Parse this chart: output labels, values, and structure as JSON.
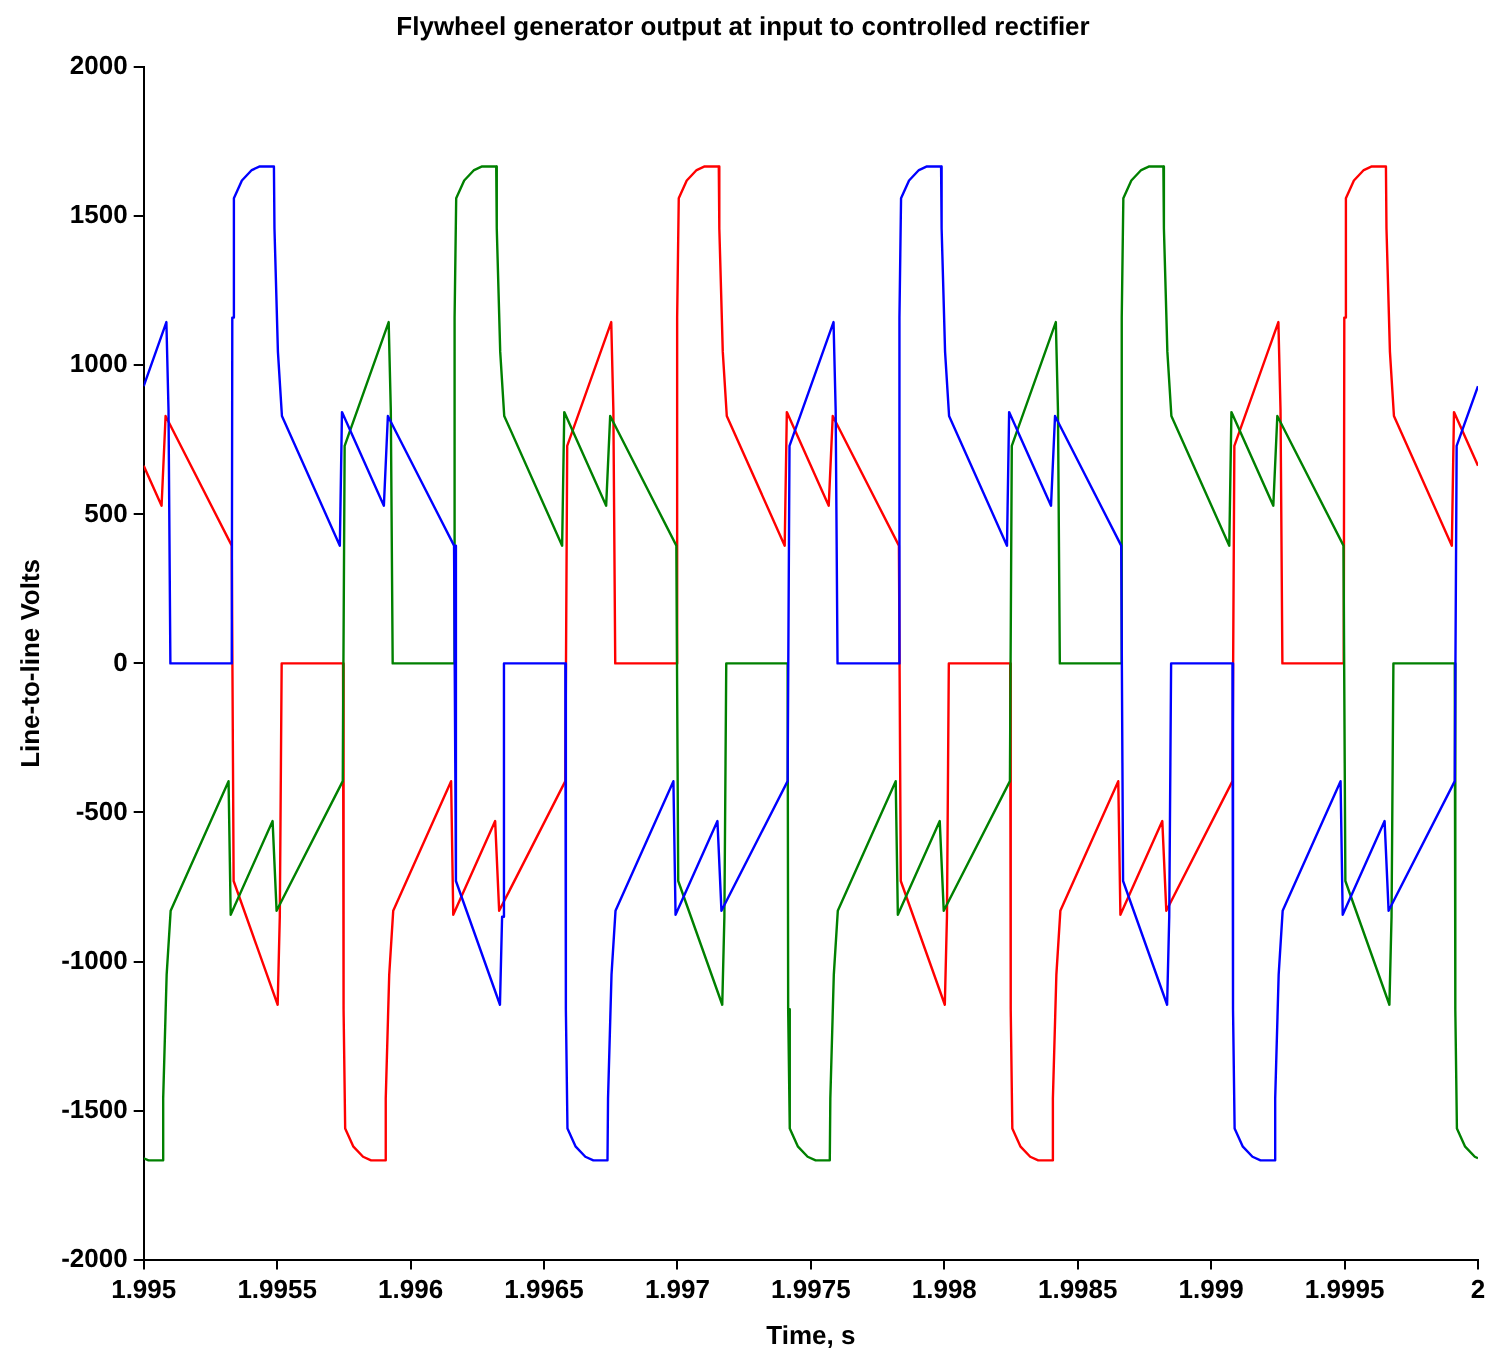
{
  "chart_data": {
    "type": "line",
    "title": "Flywheel generator output at input to controlled rectifier",
    "xlabel": "Time, s",
    "ylabel": "Line-to-line Volts",
    "xlim": [
      1.995,
      2
    ],
    "xticks": [
      1.995,
      1.9955,
      1.996,
      1.9965,
      1.997,
      1.9975,
      1.998,
      1.9985,
      1.999,
      1.9995,
      2
    ],
    "ylim": [
      -2000,
      2000
    ],
    "yticks": [
      -2000,
      -1500,
      -1000,
      -500,
      0,
      500,
      1000,
      1500,
      2000
    ],
    "grid": false,
    "legend": false,
    "series": [
      {
        "color": "#0000ff",
        "x": [
          1.995,
          1.995085,
          1.995093,
          1.9951,
          1.99533,
          1.995332,
          1.995338,
          1.995368,
          1.995405,
          1.995435,
          1.995488,
          1.99549,
          1.995503,
          1.995518,
          1.995735,
          1.995743,
          1.9959,
          1.995915,
          1.996163,
          1.99617,
          1.996335,
          1.996343,
          1.99635,
          1.99658,
          1.996582,
          1.996588,
          1.996618,
          1.996655,
          1.996685,
          1.996738,
          1.99674,
          1.996753,
          1.996768,
          1.996985,
          1.996993,
          1.99715,
          1.997165,
          1.997413,
          1.99742,
          1.997585,
          1.997593,
          1.9976,
          1.99783,
          1.997832,
          1.997838,
          1.997868,
          1.997905,
          1.997935,
          1.997988,
          1.99799,
          1.998003,
          1.998018,
          1.998235,
          1.998243,
          1.9984,
          1.998415,
          1.998663,
          1.99867,
          1.998835,
          1.998843,
          1.99885,
          1.99908,
          1.999082,
          1.999088,
          1.999118,
          1.999155,
          1.999185,
          1.999238,
          1.99924,
          1.999253,
          1.999268,
          1.999485,
          1.999493,
          1.99965,
          1.999665,
          1.999913,
          1.99992,
          2
        ],
        "values": [
          930,
          1145,
          850,
          0,
          0,
          1160,
          1560,
          1620,
          1655,
          1667,
          1667,
          1460,
          1045,
          830,
          395,
          843,
          529,
          830,
          395,
          -730,
          -1145,
          -850,
          0,
          0,
          -1160,
          -1560,
          -1620,
          -1655,
          -1667,
          -1667,
          -1460,
          -1045,
          -830,
          -395,
          -843,
          -529,
          -830,
          -395,
          730,
          1145,
          850,
          0,
          0,
          1160,
          1560,
          1620,
          1655,
          1667,
          1667,
          1460,
          1045,
          830,
          395,
          843,
          529,
          830,
          395,
          -730,
          -1145,
          -850,
          0,
          0,
          -1160,
          -1560,
          -1620,
          -1655,
          -1667,
          -1667,
          -1460,
          -1045,
          -830,
          -395,
          -843,
          -529,
          -830,
          -395,
          730,
          930
        ]
      },
      {
        "color": "#008000",
        "x": [
          1.995,
          1.995018,
          1.995071,
          1.995073,
          1.995086,
          1.995101,
          1.995318,
          1.995326,
          1.995483,
          1.995498,
          1.995746,
          1.995753,
          1.995918,
          1.995926,
          1.995933,
          1.996163,
          1.996165,
          1.996171,
          1.996201,
          1.996238,
          1.996268,
          1.996321,
          1.996323,
          1.996336,
          1.996351,
          1.996568,
          1.996576,
          1.996733,
          1.996748,
          1.996996,
          1.997003,
          1.997168,
          1.997176,
          1.997183,
          1.997413,
          1.997415,
          1.997421,
          1.997451,
          1.997488,
          1.997518,
          1.997571,
          1.997573,
          1.997586,
          1.997601,
          1.997818,
          1.997826,
          1.997983,
          1.997998,
          1.998246,
          1.998253,
          1.998418,
          1.998426,
          1.998433,
          1.998663,
          1.998665,
          1.998671,
          1.998701,
          1.998738,
          1.998768,
          1.998821,
          1.998823,
          1.998836,
          1.998851,
          1.999068,
          1.999076,
          1.999233,
          1.999248,
          1.999496,
          1.999503,
          1.999668,
          1.999676,
          1.999683,
          1.999913,
          1.999915,
          1.999921,
          1.999951,
          1.999988,
          2
        ],
        "values": [
          -1660,
          -1667,
          -1667,
          -1460,
          -1045,
          -830,
          -395,
          -843,
          -529,
          -830,
          -395,
          730,
          1145,
          850,
          0,
          0,
          1160,
          1560,
          1620,
          1655,
          1667,
          1667,
          1460,
          1045,
          830,
          395,
          843,
          529,
          830,
          395,
          -730,
          -1145,
          -850,
          0,
          0,
          -1160,
          -1560,
          -1620,
          -1655,
          -1667,
          -1667,
          -1460,
          -1045,
          -830,
          -395,
          -843,
          -529,
          -830,
          -395,
          730,
          1145,
          850,
          0,
          0,
          1160,
          1560,
          1620,
          1655,
          1667,
          1667,
          1460,
          1045,
          830,
          395,
          843,
          529,
          830,
          395,
          -730,
          -1145,
          -850,
          0,
          0,
          -1160,
          -1560,
          -1620,
          -1655,
          -1660
        ]
      },
      {
        "color": "#ff0000",
        "x": [
          1.995,
          1.995067,
          1.995082,
          1.99533,
          1.995337,
          1.995502,
          1.99551,
          1.995517,
          1.995747,
          1.995749,
          1.995755,
          1.995785,
          1.995822,
          1.995852,
          1.995905,
          1.995907,
          1.99592,
          1.995935,
          1.996152,
          1.99616,
          1.996317,
          1.996332,
          1.99658,
          1.996587,
          1.996752,
          1.99676,
          1.996767,
          1.996997,
          1.996999,
          1.997005,
          1.997035,
          1.997072,
          1.997102,
          1.997155,
          1.997157,
          1.99717,
          1.997185,
          1.997402,
          1.99741,
          1.997567,
          1.997582,
          1.99783,
          1.997837,
          1.998002,
          1.99801,
          1.998017,
          1.998247,
          1.998249,
          1.998255,
          1.998285,
          1.998322,
          1.998352,
          1.998405,
          1.998407,
          1.99842,
          1.998435,
          1.998652,
          1.99866,
          1.998817,
          1.998832,
          1.99908,
          1.999087,
          1.999252,
          1.99926,
          1.999267,
          1.999497,
          1.999499,
          1.999505,
          1.999535,
          1.999572,
          1.999602,
          1.999655,
          1.999657,
          1.99967,
          1.999685,
          1.999902,
          1.99991,
          2
        ],
        "values": [
          663,
          529,
          830,
          395,
          -730,
          -1145,
          -850,
          0,
          0,
          -1160,
          -1560,
          -1620,
          -1655,
          -1667,
          -1667,
          -1460,
          -1045,
          -830,
          -395,
          -843,
          -529,
          -830,
          -395,
          730,
          1145,
          850,
          0,
          0,
          1160,
          1560,
          1620,
          1655,
          1667,
          1667,
          1460,
          1045,
          830,
          395,
          843,
          529,
          830,
          395,
          -730,
          -1145,
          -850,
          0,
          0,
          -1160,
          -1560,
          -1620,
          -1655,
          -1667,
          -1667,
          -1460,
          -1045,
          -830,
          -395,
          -843,
          -529,
          -830,
          -395,
          730,
          1145,
          850,
          0,
          0,
          1160,
          1560,
          1620,
          1655,
          1667,
          1667,
          1460,
          1045,
          830,
          395,
          843,
          663
        ]
      }
    ]
  }
}
